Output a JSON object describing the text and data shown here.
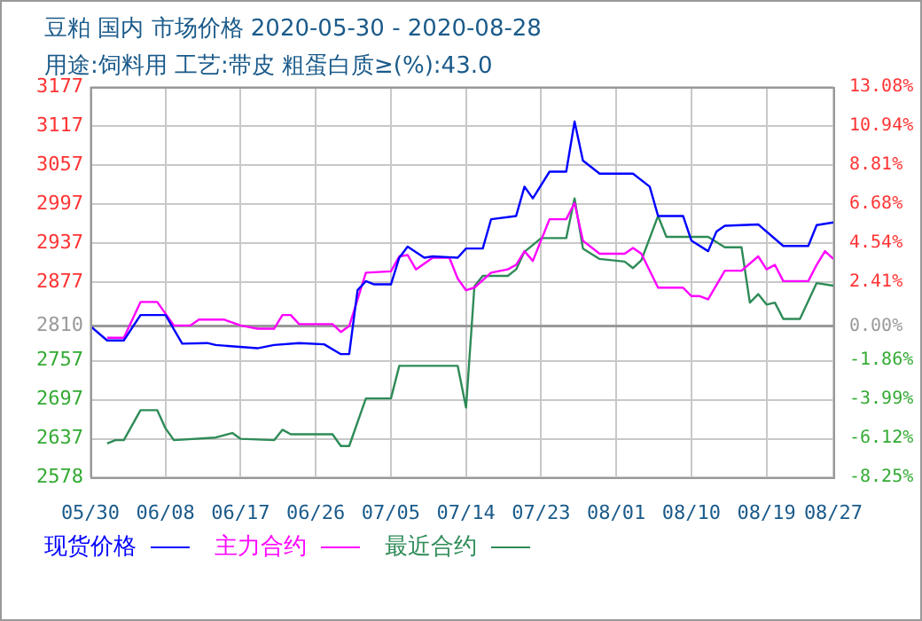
{
  "chart_data": {
    "type": "line",
    "title": "豆粕 国内 市场价格 2020-05-30 - 2020-08-28",
    "subtitle": "用途:饲料用 工艺:带皮 粗蛋白质≥(%):43.0",
    "xlim": [
      "2020-05-30",
      "2020-08-27"
    ],
    "xticks": [
      {
        "value": "2020-05-30",
        "label": "05/30"
      },
      {
        "value": "2020-06-08",
        "label": "06/08"
      },
      {
        "value": "2020-06-17",
        "label": "06/17"
      },
      {
        "value": "2020-06-26",
        "label": "06/26"
      },
      {
        "value": "2020-07-05",
        "label": "07/05"
      },
      {
        "value": "2020-07-14",
        "label": "07/14"
      },
      {
        "value": "2020-07-23",
        "label": "07/23"
      },
      {
        "value": "2020-08-01",
        "label": "08/01"
      },
      {
        "value": "2020-08-10",
        "label": "08/10"
      },
      {
        "value": "2020-08-19",
        "label": "08/19"
      },
      {
        "value": "2020-08-27",
        "label": "08/27"
      }
    ],
    "ylim": [
      2578,
      3177
    ],
    "yticks": [
      2578,
      2637,
      2697,
      2757,
      2810,
      2877,
      2937,
      2997,
      3057,
      3117,
      3177
    ],
    "y2lim": [
      -8.25,
      13.08
    ],
    "y2ticks": [
      {
        "value": -8.25,
        "label": "-8.25%"
      },
      {
        "value": -6.12,
        "label": "-6.12%"
      },
      {
        "value": -3.99,
        "label": "-3.99%"
      },
      {
        "value": -1.86,
        "label": "-1.86%"
      },
      {
        "value": 0,
        "label": "0.00%"
      },
      {
        "value": 2.41,
        "label": "2.41%"
      },
      {
        "value": 4.54,
        "label": "4.54%"
      },
      {
        "value": 6.68,
        "label": "6.68%"
      },
      {
        "value": 8.81,
        "label": "8.81%"
      },
      {
        "value": 10.94,
        "label": "10.94%"
      },
      {
        "value": 13.08,
        "label": "13.08%"
      }
    ],
    "ref_lines": [
      {
        "axis": "y",
        "value": 2810,
        "color": "#999999"
      }
    ],
    "grid": true,
    "legend": "bottom",
    "marker": "none",
    "line_style": "solid",
    "series": [
      {
        "name": "现货价格",
        "color": "#0000ff",
        "x": [
          "2020-05-30",
          "2020-06-01",
          "2020-06-03",
          "2020-06-05",
          "2020-06-08",
          "2020-06-10",
          "2020-06-13",
          "2020-06-14",
          "2020-06-19",
          "2020-06-21",
          "2020-06-24",
          "2020-06-27",
          "2020-06-29",
          "2020-06-30",
          "2020-07-01",
          "2020-07-02",
          "2020-07-03",
          "2020-07-05",
          "2020-07-06",
          "2020-07-07",
          "2020-07-09",
          "2020-07-10",
          "2020-07-13",
          "2020-07-14",
          "2020-07-16",
          "2020-07-17",
          "2020-07-20",
          "2020-07-21",
          "2020-07-22",
          "2020-07-24",
          "2020-07-26",
          "2020-07-27",
          "2020-07-28",
          "2020-07-30",
          "2020-08-03",
          "2020-08-05",
          "2020-08-06",
          "2020-08-09",
          "2020-08-10",
          "2020-08-12",
          "2020-08-13",
          "2020-08-14",
          "2020-08-18",
          "2020-08-21",
          "2020-08-24",
          "2020-08-25",
          "2020-08-27"
        ],
        "values": [
          2810,
          2788,
          2788,
          2827,
          2827,
          2783,
          2784,
          2781,
          2776,
          2781,
          2784,
          2782,
          2767,
          2767,
          2865,
          2879,
          2874,
          2874,
          2915,
          2932,
          2915,
          2917,
          2915,
          2929,
          2929,
          2974,
          2979,
          3024,
          3006,
          3047,
          3047,
          3124,
          3064,
          3044,
          3044,
          3024,
          2979,
          2979,
          2941,
          2925,
          2955,
          2964,
          2966,
          2933,
          2933,
          2965,
          2969
        ]
      },
      {
        "name": "主力合约",
        "color": "#ff00ff",
        "x": [
          "2020-06-01",
          "2020-06-03",
          "2020-06-05",
          "2020-06-07",
          "2020-06-09",
          "2020-06-11",
          "2020-06-12",
          "2020-06-15",
          "2020-06-17",
          "2020-06-19",
          "2020-06-21",
          "2020-06-22",
          "2020-06-23",
          "2020-06-24",
          "2020-06-28",
          "2020-06-29",
          "2020-06-30",
          "2020-07-02",
          "2020-07-05",
          "2020-07-06",
          "2020-07-07",
          "2020-07-08",
          "2020-07-10",
          "2020-07-12",
          "2020-07-13",
          "2020-07-14",
          "2020-07-15",
          "2020-07-17",
          "2020-07-19",
          "2020-07-20",
          "2020-07-21",
          "2020-07-22",
          "2020-07-24",
          "2020-07-26",
          "2020-07-27",
          "2020-07-28",
          "2020-07-30",
          "2020-08-02",
          "2020-08-03",
          "2020-08-04",
          "2020-08-06",
          "2020-08-09",
          "2020-08-10",
          "2020-08-11",
          "2020-08-12",
          "2020-08-14",
          "2020-08-16",
          "2020-08-18",
          "2020-08-19",
          "2020-08-20",
          "2020-08-21",
          "2020-08-24",
          "2020-08-25",
          "2020-08-26",
          "2020-08-27"
        ],
        "values": [
          2792,
          2792,
          2847,
          2847,
          2811,
          2811,
          2820,
          2820,
          2811,
          2806,
          2806,
          2827,
          2827,
          2813,
          2813,
          2801,
          2810,
          2892,
          2894,
          2917,
          2919,
          2897,
          2915,
          2915,
          2883,
          2865,
          2869,
          2892,
          2897,
          2904,
          2925,
          2910,
          2974,
          2974,
          2999,
          2941,
          2921,
          2921,
          2930,
          2921,
          2869,
          2869,
          2856,
          2856,
          2851,
          2895,
          2895,
          2917,
          2897,
          2904,
          2879,
          2879,
          2904,
          2925,
          2913
        ]
      },
      {
        "name": "最近合约",
        "color": "#2e8b57",
        "x": [
          "2020-06-01",
          "2020-06-02",
          "2020-06-03",
          "2020-06-05",
          "2020-06-07",
          "2020-06-08",
          "2020-06-09",
          "2020-06-14",
          "2020-06-16",
          "2020-06-17",
          "2020-06-21",
          "2020-06-22",
          "2020-06-23",
          "2020-06-28",
          "2020-06-29",
          "2020-06-30",
          "2020-07-02",
          "2020-07-05",
          "2020-07-06",
          "2020-07-13",
          "2020-07-14",
          "2020-07-15",
          "2020-07-16",
          "2020-07-19",
          "2020-07-20",
          "2020-07-21",
          "2020-07-23",
          "2020-07-26",
          "2020-07-27",
          "2020-07-28",
          "2020-07-30",
          "2020-08-02",
          "2020-08-03",
          "2020-08-04",
          "2020-08-06",
          "2020-08-07",
          "2020-08-12",
          "2020-08-14",
          "2020-08-16",
          "2020-08-17",
          "2020-08-18",
          "2020-08-19",
          "2020-08-20",
          "2020-08-21",
          "2020-08-23",
          "2020-08-25",
          "2020-08-27"
        ],
        "values": [
          2630,
          2635,
          2635,
          2681,
          2681,
          2653,
          2635,
          2639,
          2646,
          2637,
          2635,
          2651,
          2644,
          2644,
          2626,
          2626,
          2699,
          2699,
          2749,
          2749,
          2685,
          2871,
          2887,
          2887,
          2897,
          2924,
          2945,
          2945,
          3006,
          2929,
          2913,
          2909,
          2899,
          2911,
          2979,
          2947,
          2947,
          2931,
          2931,
          2846,
          2859,
          2843,
          2846,
          2821,
          2821,
          2876,
          2872
        ]
      }
    ]
  }
}
